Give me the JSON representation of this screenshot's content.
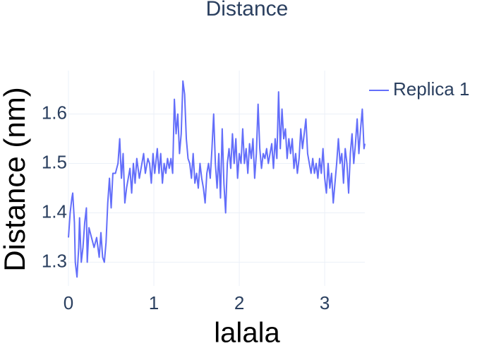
{
  "chart_data": {
    "type": "line",
    "title": "Distance",
    "xlabel": "lalala",
    "ylabel": "Distance (nm)",
    "x": [
      0.0,
      0.02,
      0.04,
      0.05,
      0.07,
      0.08,
      0.1,
      0.12,
      0.13,
      0.15,
      0.17,
      0.19,
      0.21,
      0.22,
      0.24,
      0.27,
      0.3,
      0.33,
      0.36,
      0.38,
      0.4,
      0.42,
      0.44,
      0.46,
      0.48,
      0.5,
      0.52,
      0.55,
      0.58,
      0.6,
      0.62,
      0.64,
      0.66,
      0.68,
      0.7,
      0.72,
      0.74,
      0.76,
      0.78,
      0.8,
      0.83,
      0.86,
      0.88,
      0.9,
      0.93,
      0.95,
      0.97,
      0.99,
      1.01,
      1.04,
      1.06,
      1.08,
      1.1,
      1.12,
      1.14,
      1.16,
      1.18,
      1.2,
      1.22,
      1.24,
      1.26,
      1.28,
      1.3,
      1.32,
      1.34,
      1.36,
      1.38,
      1.4,
      1.42,
      1.44,
      1.46,
      1.48,
      1.5,
      1.52,
      1.54,
      1.56,
      1.58,
      1.6,
      1.62,
      1.64,
      1.66,
      1.68,
      1.7,
      1.72,
      1.74,
      1.76,
      1.78,
      1.8,
      1.82,
      1.84,
      1.86,
      1.88,
      1.9,
      1.92,
      1.94,
      1.96,
      1.98,
      2.0,
      2.02,
      2.04,
      2.06,
      2.08,
      2.1,
      2.12,
      2.14,
      2.16,
      2.18,
      2.2,
      2.22,
      2.24,
      2.26,
      2.28,
      2.3,
      2.32,
      2.34,
      2.36,
      2.38,
      2.4,
      2.42,
      2.44,
      2.46,
      2.48,
      2.5,
      2.52,
      2.54,
      2.56,
      2.58,
      2.6,
      2.62,
      2.64,
      2.66,
      2.68,
      2.7,
      2.72,
      2.74,
      2.76,
      2.78,
      2.8,
      2.82,
      2.84,
      2.86,
      2.88,
      2.9,
      2.92,
      2.94,
      2.96,
      2.98,
      3.0,
      3.02,
      3.04,
      3.06,
      3.08,
      3.1,
      3.12,
      3.14,
      3.16,
      3.18,
      3.2,
      3.22,
      3.24,
      3.26,
      3.28,
      3.3,
      3.32,
      3.34,
      3.36,
      3.38,
      3.4,
      3.42,
      3.44,
      3.46,
      3.47
    ],
    "series": [
      {
        "name": "Replica 1",
        "color": "#636efa",
        "values": [
          1.35,
          1.4,
          1.43,
          1.44,
          1.38,
          1.3,
          1.27,
          1.33,
          1.39,
          1.3,
          1.33,
          1.38,
          1.41,
          1.3,
          1.37,
          1.35,
          1.33,
          1.35,
          1.31,
          1.36,
          1.31,
          1.3,
          1.34,
          1.42,
          1.47,
          1.41,
          1.48,
          1.48,
          1.5,
          1.55,
          1.47,
          1.52,
          1.42,
          1.45,
          1.47,
          1.49,
          1.44,
          1.5,
          1.46,
          1.51,
          1.47,
          1.5,
          1.52,
          1.48,
          1.51,
          1.5,
          1.46,
          1.52,
          1.48,
          1.53,
          1.48,
          1.52,
          1.46,
          1.5,
          1.48,
          1.51,
          1.49,
          1.51,
          1.48,
          1.63,
          1.56,
          1.6,
          1.52,
          1.56,
          1.667,
          1.64,
          1.55,
          1.51,
          1.5,
          1.47,
          1.52,
          1.46,
          1.48,
          1.45,
          1.5,
          1.47,
          1.45,
          1.42,
          1.48,
          1.5,
          1.47,
          1.53,
          1.6,
          1.5,
          1.45,
          1.52,
          1.43,
          1.57,
          1.46,
          1.4,
          1.5,
          1.53,
          1.49,
          1.56,
          1.5,
          1.55,
          1.47,
          1.52,
          1.5,
          1.57,
          1.5,
          1.53,
          1.48,
          1.54,
          1.51,
          1.55,
          1.47,
          1.52,
          1.62,
          1.53,
          1.49,
          1.52,
          1.51,
          1.53,
          1.5,
          1.52,
          1.54,
          1.49,
          1.55,
          1.51,
          1.645,
          1.53,
          1.61,
          1.55,
          1.57,
          1.51,
          1.55,
          1.52,
          1.55,
          1.49,
          1.52,
          1.48,
          1.51,
          1.57,
          1.53,
          1.56,
          1.59,
          1.52,
          1.5,
          1.48,
          1.51,
          1.48,
          1.5,
          1.47,
          1.51,
          1.48,
          1.53,
          1.47,
          1.44,
          1.5,
          1.45,
          1.48,
          1.42,
          1.46,
          1.5,
          1.55,
          1.5,
          1.52,
          1.46,
          1.53,
          1.5,
          1.44,
          1.52,
          1.56,
          1.5,
          1.54,
          1.59,
          1.52,
          1.57,
          1.61,
          1.53,
          1.54
        ]
      }
    ],
    "xlim": [
      0,
      3.47
    ],
    "ylim": [
      1.252,
      1.688
    ],
    "xticks": [
      0,
      1,
      2,
      3
    ],
    "yticks": [
      1.3,
      1.4,
      1.5,
      1.6
    ],
    "grid": true,
    "legend": "top-right"
  }
}
